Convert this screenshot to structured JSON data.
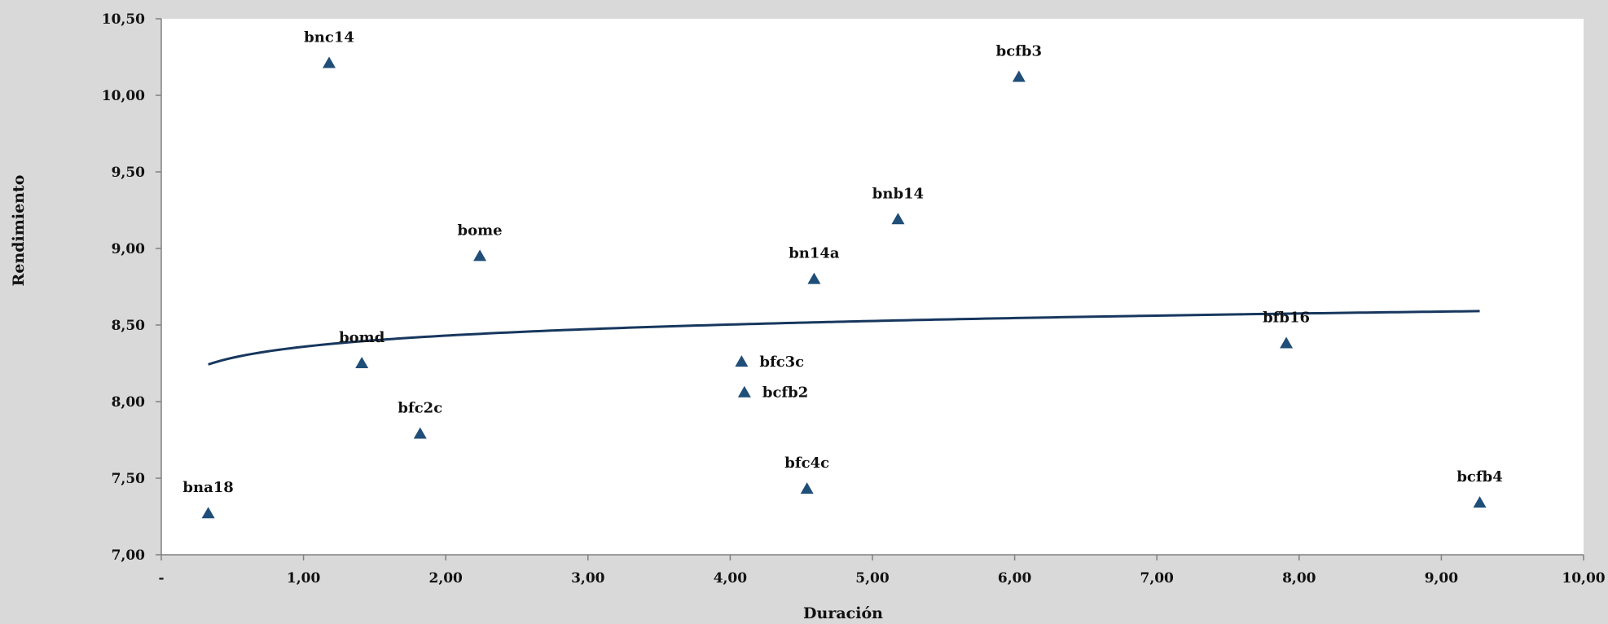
{
  "chart_data": {
    "type": "scatter",
    "title": "",
    "xlabel": "Duración",
    "ylabel": "Rendimiento",
    "xlim": [
      0,
      10
    ],
    "ylim": [
      7,
      10.5
    ],
    "x_ticks": [
      {
        "value": 0,
        "label": "-"
      },
      {
        "value": 1,
        "label": "1,00"
      },
      {
        "value": 2,
        "label": "2,00"
      },
      {
        "value": 3,
        "label": "3,00"
      },
      {
        "value": 4,
        "label": "4,00"
      },
      {
        "value": 5,
        "label": "5,00"
      },
      {
        "value": 6,
        "label": "6,00"
      },
      {
        "value": 7,
        "label": "7,00"
      },
      {
        "value": 8,
        "label": "8,00"
      },
      {
        "value": 9,
        "label": "9,00"
      },
      {
        "value": 10,
        "label": "10,00"
      }
    ],
    "y_ticks": [
      {
        "value": 7.0,
        "label": "7,00"
      },
      {
        "value": 7.5,
        "label": "7,50"
      },
      {
        "value": 8.0,
        "label": "8,00"
      },
      {
        "value": 8.5,
        "label": "8,50"
      },
      {
        "value": 9.0,
        "label": "9,00"
      },
      {
        "value": 9.5,
        "label": "9,50"
      },
      {
        "value": 10.0,
        "label": "10,00"
      },
      {
        "value": 10.5,
        "label": "10,50"
      }
    ],
    "grid": false,
    "marker": "triangle",
    "marker_color": "#1f4e79",
    "trendline_color": "#17375e",
    "points": [
      {
        "label": "bna18",
        "x": 0.33,
        "y": 7.27,
        "label_pos": "above"
      },
      {
        "label": "bnc14",
        "x": 1.18,
        "y": 10.21,
        "label_pos": "above"
      },
      {
        "label": "bomd",
        "x": 1.41,
        "y": 8.25,
        "label_pos": "above"
      },
      {
        "label": "bfc2c",
        "x": 1.82,
        "y": 7.79,
        "label_pos": "above"
      },
      {
        "label": "bome",
        "x": 2.24,
        "y": 8.95,
        "label_pos": "above"
      },
      {
        "label": "bfc3c",
        "x": 4.08,
        "y": 8.26,
        "label_pos": "right"
      },
      {
        "label": "bcfb2",
        "x": 4.1,
        "y": 8.06,
        "label_pos": "right"
      },
      {
        "label": "bfc4c",
        "x": 4.54,
        "y": 7.43,
        "label_pos": "above"
      },
      {
        "label": "bn14a",
        "x": 4.59,
        "y": 8.8,
        "label_pos": "above"
      },
      {
        "label": "bnb14",
        "x": 5.18,
        "y": 9.19,
        "label_pos": "above"
      },
      {
        "label": "bcfb3",
        "x": 6.03,
        "y": 10.12,
        "label_pos": "above"
      },
      {
        "label": "bfb16",
        "x": 7.91,
        "y": 8.38,
        "label_pos": "above"
      },
      {
        "label": "bcfb4",
        "x": 9.27,
        "y": 7.34,
        "label_pos": "above"
      }
    ],
    "trendline": {
      "type": "logarithmic",
      "x_range": [
        0.33,
        9.27
      ],
      "a": 8.3584,
      "b": 0.1044
    }
  }
}
